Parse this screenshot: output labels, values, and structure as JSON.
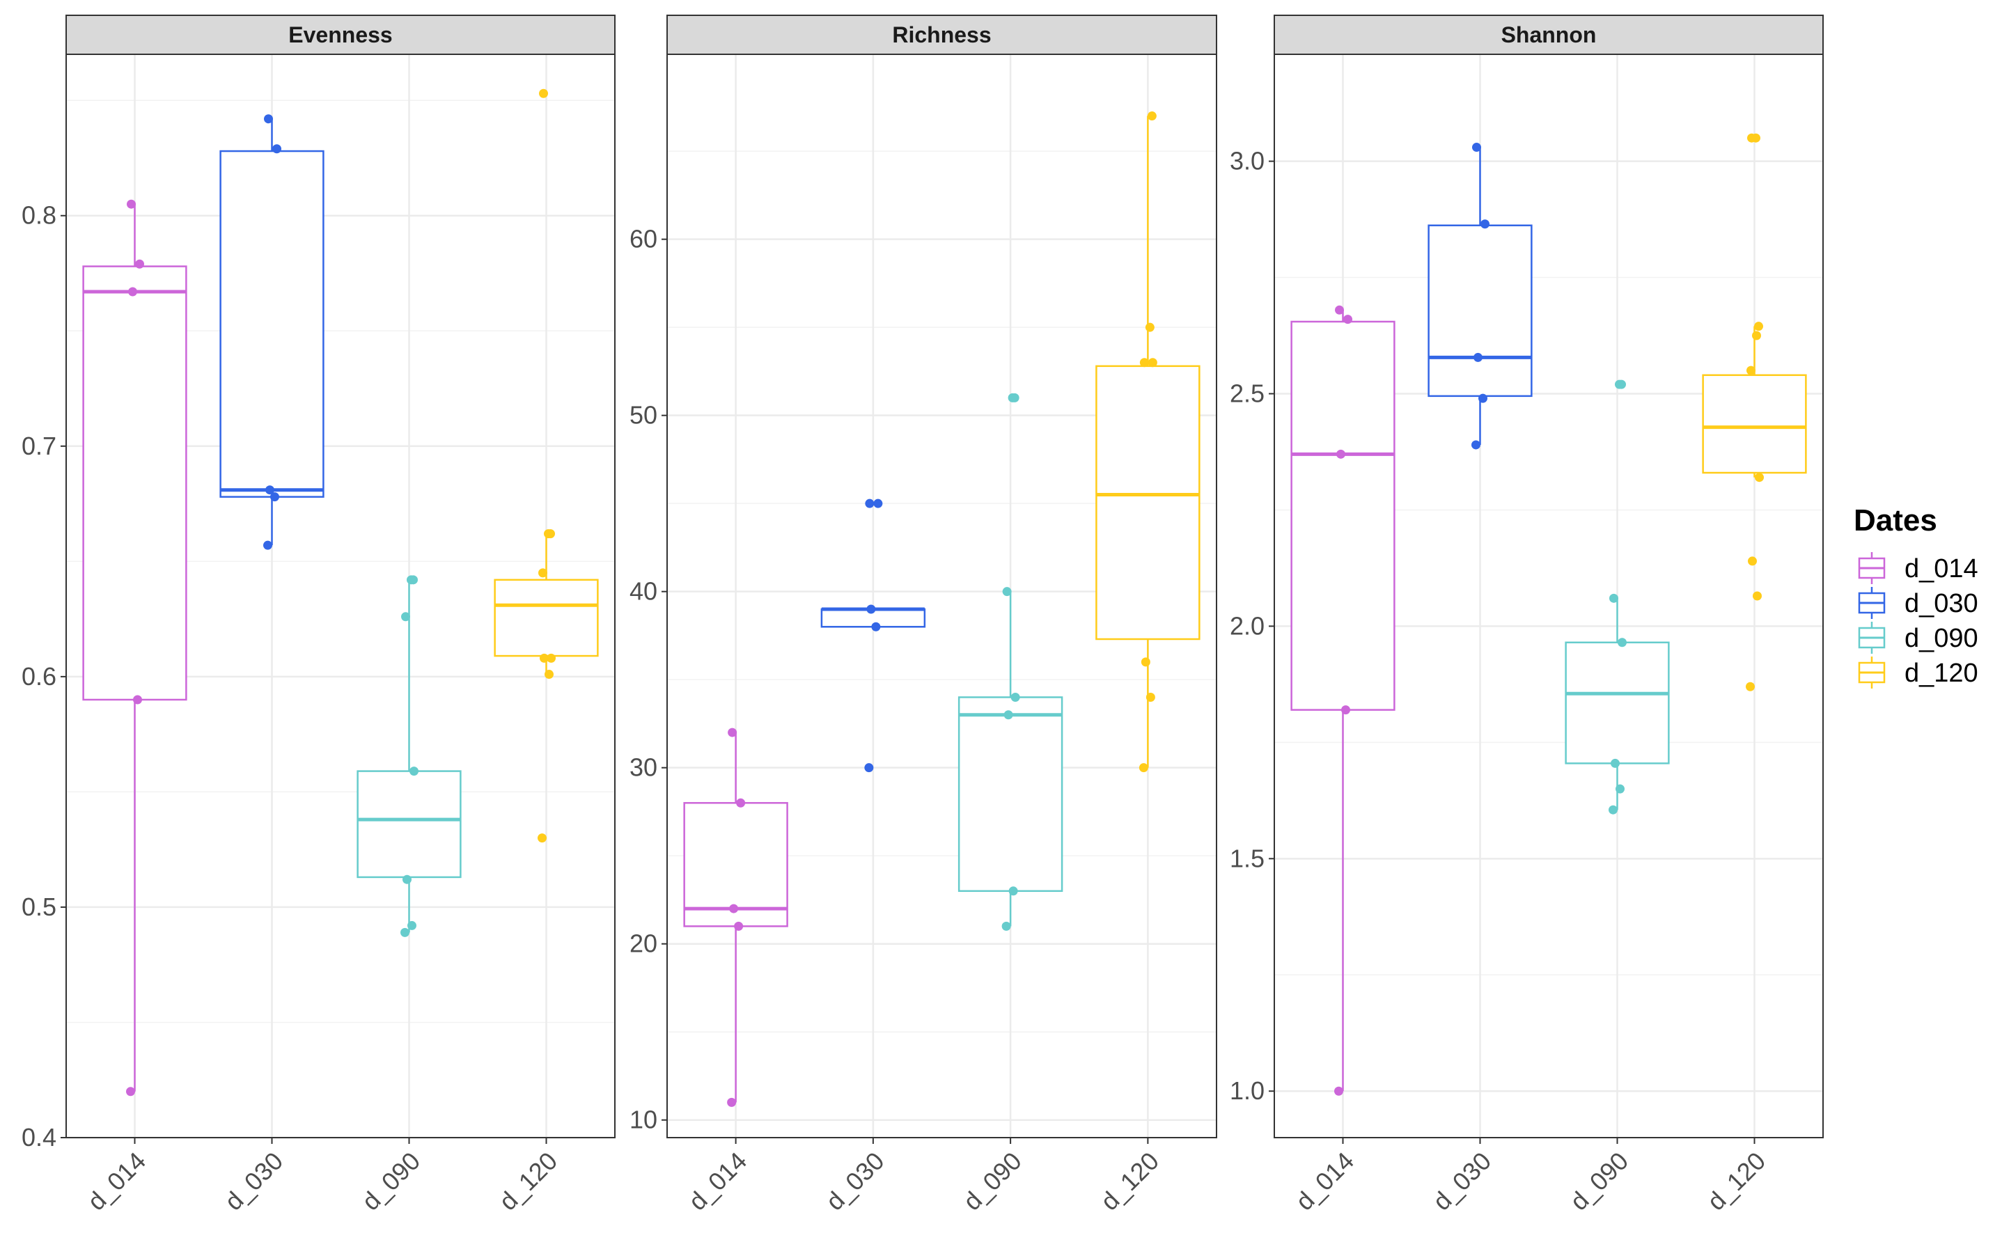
{
  "chart_data": {
    "type": "boxplot",
    "categories": [
      "d_014",
      "d_030",
      "d_090",
      "d_120"
    ],
    "colors": {
      "d_014": "#CC66D9",
      "d_030": "#3366E6",
      "d_090": "#66CCCC",
      "d_120": "#FFCC1A"
    },
    "legend": {
      "title": "Dates",
      "position": "right",
      "entries": [
        "d_014",
        "d_030",
        "d_090",
        "d_120"
      ]
    },
    "grid": true,
    "facets": [
      {
        "name": "Evenness",
        "ylim": [
          0.4,
          0.87
        ],
        "yticks": [
          "0.4",
          "0.5",
          "0.6",
          "0.7",
          "0.8"
        ],
        "tick_values": [
          0.4,
          0.5,
          0.6,
          0.7,
          0.8
        ],
        "boxes": [
          {
            "category": "d_014",
            "whisker_low": 0.42,
            "q1": 0.59,
            "median": 0.767,
            "q3": 0.778,
            "whisker_high": 0.805,
            "points": [
              0.42,
              0.59,
              0.767,
              0.779,
              0.805
            ]
          },
          {
            "category": "d_030",
            "whisker_low": 0.657,
            "q1": 0.678,
            "median": 0.681,
            "q3": 0.828,
            "whisker_high": 0.842,
            "points": [
              0.657,
              0.678,
              0.681,
              0.829,
              0.842
            ]
          },
          {
            "category": "d_090",
            "whisker_low": 0.489,
            "q1": 0.513,
            "median": 0.538,
            "q3": 0.559,
            "whisker_high": 0.642,
            "points": [
              0.489,
              0.492,
              0.512,
              0.559,
              0.626,
              0.642,
              0.642
            ]
          },
          {
            "category": "d_120",
            "whisker_low": 0.601,
            "q1": 0.609,
            "median": 0.631,
            "q3": 0.642,
            "whisker_high": 0.662,
            "points": [
              0.53,
              0.601,
              0.608,
              0.608,
              0.645,
              0.662,
              0.662,
              0.853
            ]
          }
        ]
      },
      {
        "name": "Richness",
        "ylim": [
          9,
          70.5
        ],
        "yticks": [
          "10",
          "20",
          "30",
          "40",
          "50",
          "60"
        ],
        "tick_values": [
          10,
          20,
          30,
          40,
          50,
          60
        ],
        "boxes": [
          {
            "category": "d_014",
            "whisker_low": 11,
            "q1": 21,
            "median": 22,
            "q3": 28,
            "whisker_high": 32,
            "points": [
              11,
              21,
              22,
              28,
              32
            ]
          },
          {
            "category": "d_030",
            "whisker_low": 38,
            "q1": 38,
            "median": 39,
            "q3": 39,
            "whisker_high": 39,
            "points": [
              30,
              38,
              39,
              45,
              45
            ]
          },
          {
            "category": "d_090",
            "whisker_low": 21,
            "q1": 23,
            "median": 33,
            "q3": 34,
            "whisker_high": 40,
            "points": [
              21,
              23,
              33,
              34,
              40,
              51,
              51
            ]
          },
          {
            "category": "d_120",
            "whisker_low": 30,
            "q1": 37.3,
            "median": 45.5,
            "q3": 52.8,
            "whisker_high": 67,
            "points": [
              30,
              34,
              36,
              53,
              53,
              55,
              67
            ]
          }
        ]
      },
      {
        "name": "Shannon",
        "ylim": [
          0.9,
          3.23
        ],
        "yticks": [
          "1.0",
          "1.5",
          "2.0",
          "2.5",
          "3.0"
        ],
        "tick_values": [
          1.0,
          1.5,
          2.0,
          2.5,
          3.0
        ],
        "boxes": [
          {
            "category": "d_014",
            "whisker_low": 1.0,
            "q1": 1.82,
            "median": 2.37,
            "q3": 2.655,
            "whisker_high": 2.68,
            "points": [
              1.0,
              1.82,
              2.37,
              2.66,
              2.68
            ]
          },
          {
            "category": "d_030",
            "whisker_low": 2.39,
            "q1": 2.495,
            "median": 2.578,
            "q3": 2.862,
            "whisker_high": 3.03,
            "points": [
              2.39,
              2.49,
              2.578,
              2.865,
              3.03
            ]
          },
          {
            "category": "d_090",
            "whisker_low": 1.605,
            "q1": 1.705,
            "median": 1.855,
            "q3": 1.965,
            "whisker_high": 2.06,
            "points": [
              1.605,
              1.65,
              1.705,
              1.965,
              2.06,
              2.52,
              2.52
            ]
          },
          {
            "category": "d_120",
            "whisker_low": 2.32,
            "q1": 2.33,
            "median": 2.428,
            "q3": 2.54,
            "whisker_high": 2.645,
            "points": [
              1.87,
              2.065,
              2.14,
              2.32,
              2.55,
              2.625,
              2.645,
              3.05,
              3.05
            ]
          }
        ]
      }
    ]
  }
}
